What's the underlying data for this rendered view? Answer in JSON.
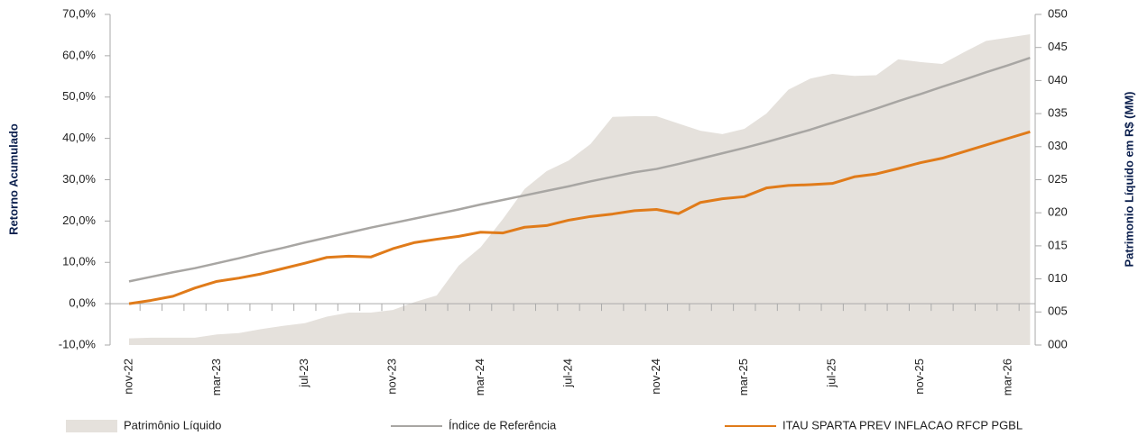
{
  "chart_data": {
    "type": "line",
    "y_label": "Retorno Acumulado",
    "y2_label": "Patrimonio Líquido em R$ (MM)",
    "categories": [
      "nov-22",
      null,
      null,
      null,
      "mar-23",
      null,
      null,
      null,
      "jul-23",
      null,
      null,
      null,
      "nov-23",
      null,
      null,
      null,
      "mar-24",
      null,
      null,
      null,
      "jul-24",
      null,
      null,
      null,
      "nov-24",
      null,
      null,
      null,
      "mar-25",
      null,
      null,
      null,
      "jul-25",
      null,
      null,
      null,
      "nov-25",
      null,
      null,
      null,
      "mar-26",
      null
    ],
    "series": [
      {
        "name": "Patrimônio Líquido",
        "color": "#e5e1dc",
        "kind": "area",
        "axis": "y2",
        "values": [
          1.0,
          1.1,
          1.1,
          1.1,
          1.6,
          1.8,
          2.4,
          2.9,
          3.3,
          4.3,
          4.9,
          4.9,
          5.3,
          6.5,
          7.5,
          12.0,
          14.8,
          19.0,
          23.6,
          26.3,
          27.9,
          30.4,
          34.5,
          34.6,
          34.6,
          33.5,
          32.4,
          31.9,
          32.7,
          35.0,
          38.6,
          40.3,
          41.0,
          40.7,
          40.8,
          43.2,
          42.8,
          42.5,
          44.3,
          46.0,
          46.5,
          47.0
        ]
      },
      {
        "name": "Índice de Referência",
        "color": "#a8a6a3",
        "kind": "line",
        "values": [
          5.4,
          6.5,
          7.6,
          8.6,
          9.8,
          11.0,
          12.3,
          13.5,
          14.8,
          16.0,
          17.2,
          18.4,
          19.5,
          20.6,
          21.7,
          22.8,
          24.0,
          25.1,
          26.2,
          27.3,
          28.4,
          29.6,
          30.7,
          31.8,
          32.6,
          33.8,
          35.1,
          36.4,
          37.7,
          39.1,
          40.6,
          42.1,
          43.8,
          45.5,
          47.2,
          49.0,
          50.7,
          52.5,
          54.2,
          56.0,
          57.7,
          59.5
        ]
      },
      {
        "name": "ITAU SPARTA PREV INFLACAO RFCP PGBL",
        "color": "#e07b1a",
        "kind": "line",
        "values": [
          0.0,
          0.8,
          1.8,
          3.8,
          5.4,
          6.2,
          7.2,
          8.5,
          9.8,
          11.2,
          11.5,
          11.3,
          13.3,
          14.8,
          15.6,
          16.3,
          17.3,
          17.1,
          18.5,
          18.9,
          20.2,
          21.1,
          21.7,
          22.5,
          22.8,
          21.8,
          24.5,
          25.4,
          25.9,
          28.0,
          28.6,
          28.8,
          29.1,
          30.7,
          31.4,
          32.7,
          34.1,
          35.2,
          36.8,
          38.4,
          40.0,
          41.6
        ]
      }
    ],
    "ylim": [
      -10,
      70
    ],
    "yticks": [
      {
        "value": -10,
        "label": "-10,0%"
      },
      {
        "value": 0,
        "label": "0,0%"
      },
      {
        "value": 10,
        "label": "10,0%"
      },
      {
        "value": 20,
        "label": "20,0%"
      },
      {
        "value": 30,
        "label": "30,0%"
      },
      {
        "value": 40,
        "label": "40,0%"
      },
      {
        "value": 50,
        "label": "50,0%"
      },
      {
        "value": 60,
        "label": "60,0%"
      },
      {
        "value": 70,
        "label": "70,0%"
      }
    ],
    "y2lim": [
      0,
      50
    ],
    "y2ticks": [
      {
        "value": 0,
        "label": "000"
      },
      {
        "value": 5,
        "label": "005"
      },
      {
        "value": 10,
        "label": "010"
      },
      {
        "value": 15,
        "label": "015"
      },
      {
        "value": 20,
        "label": "020"
      },
      {
        "value": 25,
        "label": "025"
      },
      {
        "value": 30,
        "label": "030"
      },
      {
        "value": 35,
        "label": "035"
      },
      {
        "value": 40,
        "label": "040"
      },
      {
        "value": 45,
        "label": "045"
      },
      {
        "value": 50,
        "label": "050"
      }
    ],
    "grid": false
  }
}
